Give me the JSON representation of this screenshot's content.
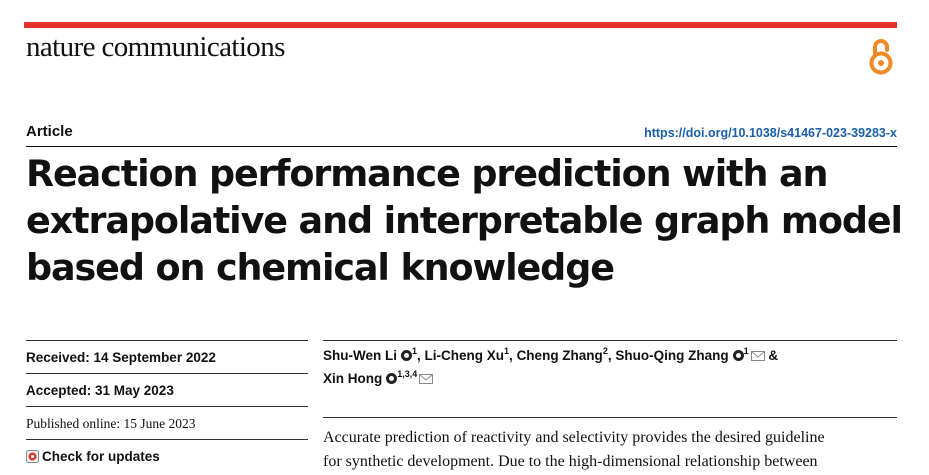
{
  "header": {
    "journal": "nature communications",
    "article_type": "Article",
    "doi": "https://doi.org/10.1038/s41467-023-39283-x"
  },
  "title_lines": [
    "Reaction performance prediction with an",
    "extrapolative and interpretable graph model",
    "based on chemical knowledge"
  ],
  "dates": {
    "received": "Received: 14 September 2022",
    "accepted": "Accepted: 31 May 2023",
    "published": "Published online: 15 June 2023",
    "updates": "Check for updates"
  },
  "authors": [
    {
      "name": "Shu-Wen Li",
      "sup": "1",
      "orcid": true,
      "email": false,
      "sep": ", "
    },
    {
      "name": "Li-Cheng Xu",
      "sup": "1",
      "orcid": false,
      "email": false,
      "sep": ", "
    },
    {
      "name": "Cheng Zhang",
      "sup": "2",
      "orcid": false,
      "email": false,
      "sep": ", "
    },
    {
      "name": "Shuo-Qing Zhang",
      "sup": "1",
      "orcid": true,
      "email": true,
      "sep": " & "
    },
    {
      "name": "Xin Hong",
      "sup": "1,3,4",
      "orcid": true,
      "email": true,
      "sep": ""
    }
  ],
  "abstract_lines": [
    "Accurate prediction of reactivity and selectivity provides the desired guideline",
    "for synthetic development. Due to the high-dimensional relationship between"
  ],
  "colors": {
    "accent_bar": "#e5332a",
    "oa_icon": "#f08a24",
    "doi_link": "#1a5fa8"
  },
  "icons": {
    "open_access": "open-access-lock-icon",
    "orcid": "orcid-icon",
    "email": "envelope-icon",
    "updates": "check-for-updates-icon"
  }
}
